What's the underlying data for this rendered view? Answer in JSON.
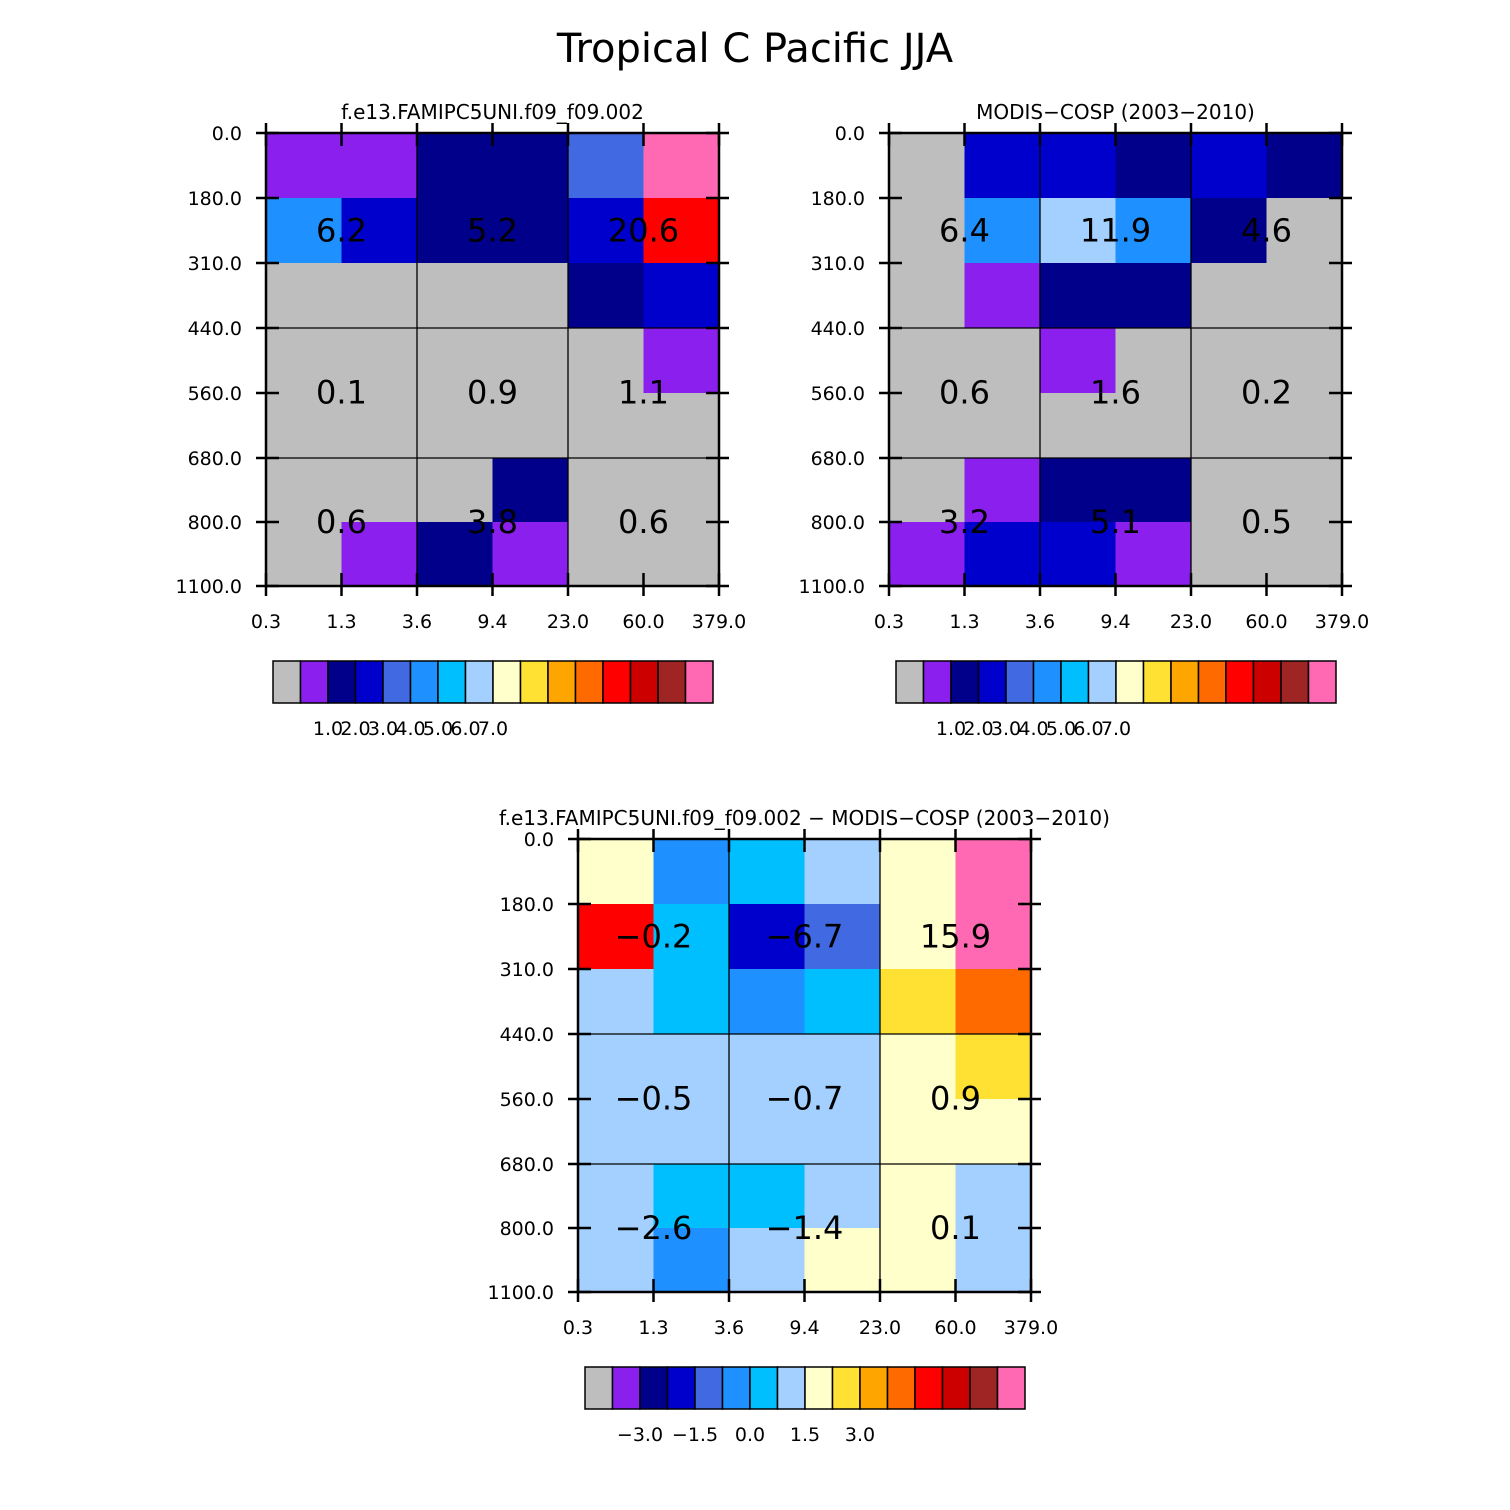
{
  "page_title": "Tropical C Pacific JJA",
  "colors": {
    "missing": "#bebebe",
    "palette": [
      "#bebebe",
      "#8b20ee",
      "#00008b",
      "#0000cd",
      "#4169e1",
      "#1e90ff",
      "#00bfff",
      "#a3d0fe",
      "#ffffcc",
      "#ffe133",
      "#ffa500",
      "#ff6a00",
      "#ff0000",
      "#cd0000",
      "#9f2424",
      "#ff69b4"
    ]
  },
  "chart_data": [
    {
      "type": "heatmap",
      "title": "f.e13.FAMIPC5UNI.f09_f09.002",
      "x_tick_labels": [
        "0.3",
        "1.3",
        "3.6",
        "9.4",
        "23.0",
        "60.0",
        "379.0"
      ],
      "y_tick_labels": [
        "0.0",
        "180.0",
        "310.0",
        "440.0",
        "560.0",
        "680.0",
        "800.0",
        "1100.0"
      ],
      "cell_colors": [
        [
          1,
          1,
          2,
          2,
          4,
          15
        ],
        [
          5,
          3,
          2,
          2,
          3,
          12
        ],
        [
          0,
          0,
          0,
          0,
          2,
          3
        ],
        [
          0,
          0,
          0,
          0,
          0,
          1
        ],
        [
          0,
          0,
          0,
          0,
          0,
          0
        ],
        [
          0,
          0,
          0,
          2,
          0,
          0
        ],
        [
          0,
          1,
          2,
          1,
          0,
          0
        ]
      ],
      "block_values": [
        [
          "6.2",
          "5.2",
          "20.6"
        ],
        [
          "0.1",
          "0.9",
          "1.1"
        ],
        [
          "0.6",
          "3.8",
          "0.6"
        ]
      ],
      "colorbar": {
        "swatches": [
          0,
          1,
          2,
          3,
          4,
          5,
          6,
          7,
          8,
          9,
          10,
          11,
          12,
          13,
          14,
          15
        ],
        "labels": [
          "1.0",
          "2.0",
          "3.0",
          "4.0",
          "5.0",
          "6.0",
          "7.0"
        ]
      }
    },
    {
      "type": "heatmap",
      "title": "MODIS-COSP (2003-2010)",
      "x_tick_labels": [
        "0.3",
        "1.3",
        "3.6",
        "9.4",
        "23.0",
        "60.0",
        "379.0"
      ],
      "y_tick_labels": [
        "0.0",
        "180.0",
        "310.0",
        "440.0",
        "560.0",
        "680.0",
        "800.0",
        "1100.0"
      ],
      "cell_colors": [
        [
          0,
          3,
          3,
          2,
          3,
          2
        ],
        [
          0,
          5,
          7,
          5,
          2,
          0
        ],
        [
          0,
          1,
          2,
          2,
          0,
          0
        ],
        [
          0,
          0,
          1,
          0,
          0,
          0
        ],
        [
          0,
          0,
          0,
          0,
          0,
          0
        ],
        [
          0,
          1,
          2,
          2,
          0,
          0
        ],
        [
          1,
          3,
          3,
          1,
          0,
          0
        ]
      ],
      "block_values": [
        [
          "6.4",
          "11.9",
          "4.6"
        ],
        [
          "0.6",
          "1.6",
          "0.2"
        ],
        [
          "3.2",
          "5.1",
          "0.5"
        ]
      ],
      "colorbar": {
        "swatches": [
          0,
          1,
          2,
          3,
          4,
          5,
          6,
          7,
          8,
          9,
          10,
          11,
          12,
          13,
          14,
          15
        ],
        "labels": [
          "1.0",
          "2.0",
          "3.0",
          "4.0",
          "5.0",
          "6.0",
          "7.0"
        ]
      }
    },
    {
      "type": "heatmap",
      "title": "f.e13.FAMIPC5UNI.f09_f09.002 - MODIS-COSP (2003-2010)",
      "x_tick_labels": [
        "0.3",
        "1.3",
        "3.6",
        "9.4",
        "23.0",
        "60.0",
        "379.0"
      ],
      "y_tick_labels": [
        "0.0",
        "180.0",
        "310.0",
        "440.0",
        "560.0",
        "680.0",
        "800.0",
        "1100.0"
      ],
      "cell_colors": [
        [
          8,
          5,
          6,
          7,
          8,
          15
        ],
        [
          12,
          6,
          3,
          4,
          8,
          15
        ],
        [
          7,
          6,
          5,
          6,
          9,
          11
        ],
        [
          7,
          7,
          7,
          7,
          8,
          9
        ],
        [
          7,
          7,
          7,
          7,
          8,
          8
        ],
        [
          7,
          6,
          6,
          7,
          8,
          7
        ],
        [
          7,
          5,
          7,
          8,
          8,
          7
        ]
      ],
      "block_values": [
        [
          "-0.2",
          "-6.7",
          "15.9"
        ],
        [
          "-0.5",
          "-0.7",
          "0.9"
        ],
        [
          "-2.6",
          "-1.4",
          "0.1"
        ]
      ],
      "colorbar": {
        "swatches": [
          0,
          1,
          2,
          3,
          4,
          5,
          6,
          7,
          8,
          9,
          10,
          11,
          12,
          13,
          14,
          15
        ],
        "labels": [
          "-3.0",
          "-1.5",
          "0.0",
          "1.5",
          "3.0"
        ]
      }
    }
  ]
}
